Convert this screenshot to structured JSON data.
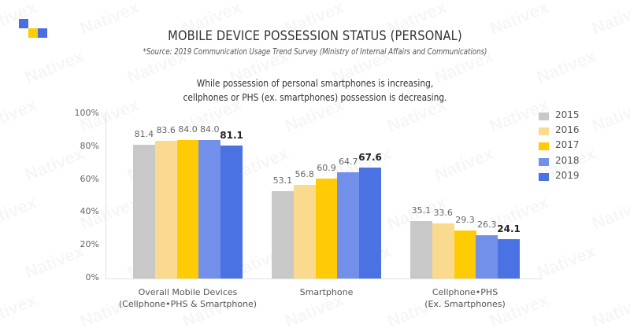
{
  "header": {
    "title": "MOBILE DEVICE POSSESSION STATUS (PERSONAL)",
    "source": "*Source: 2019 Communication Usage Trend Survey (Ministry of Internal Affairs and Communications)",
    "subtitle_line1": "While possession of personal smartphones is increasing,",
    "subtitle_line2": "cellphones or PHS (ex. smartphones) possession is decreasing."
  },
  "logo": {
    "colors": [
      "#4a6ee0",
      "#ffcc00",
      "#4a6ee0"
    ]
  },
  "watermark": "Nativex",
  "y_ticks": [
    "100%",
    "80%",
    "60%",
    "40%",
    "20%",
    "0%"
  ],
  "categories": [
    {
      "line1": "Overall Mobile Devices",
      "line2": "(Cellphone•PHS & Smartphone)"
    },
    {
      "line1": "Smartphone",
      "line2": ""
    },
    {
      "line1": "Cellphone•PHS",
      "line2": "(Ex. Smartphones)"
    }
  ],
  "legend": [
    {
      "label": "2015",
      "color": "#c8c8c8"
    },
    {
      "label": "2016",
      "color": "#f9da8e"
    },
    {
      "label": "2017",
      "color": "#ffcb05"
    },
    {
      "label": "2018",
      "color": "#7290ea"
    },
    {
      "label": "2019",
      "color": "#4b72e2"
    }
  ],
  "chart_data": {
    "type": "bar",
    "title": "MOBILE DEVICE POSSESSION STATUS (PERSONAL)",
    "subtitle": "While possession of personal smartphones is increasing, cellphones or PHS (ex. smartphones) possession is decreasing.",
    "source": "*Source: 2019 Communication Usage Trend Survey (Ministry of Internal Affairs and Communications)",
    "categories": [
      "Overall Mobile Devices (Cellphone•PHS & Smartphone)",
      "Smartphone",
      "Cellphone•PHS (Ex. Smartphones)"
    ],
    "series": [
      {
        "name": "2015",
        "color": "#c8c8c8",
        "values": [
          81.4,
          53.1,
          35.1
        ]
      },
      {
        "name": "2016",
        "color": "#f9da8e",
        "values": [
          83.6,
          56.8,
          33.6
        ]
      },
      {
        "name": "2017",
        "color": "#ffcb05",
        "values": [
          84.0,
          60.9,
          29.3
        ]
      },
      {
        "name": "2018",
        "color": "#7290ea",
        "values": [
          84.0,
          64.7,
          26.3
        ]
      },
      {
        "name": "2019",
        "color": "#4b72e2",
        "values": [
          81.1,
          67.6,
          24.1
        ]
      }
    ],
    "value_labels": [
      [
        "81.4",
        "83.6",
        "84.0",
        "84.0",
        "81.1"
      ],
      [
        "53.1",
        "56.8",
        "60.9",
        "64.7",
        "67.6"
      ],
      [
        "35.1",
        "33.6",
        "29.3",
        "26.3",
        "24.1"
      ]
    ],
    "xlabel": "",
    "ylabel": "",
    "ylim": [
      0,
      100
    ],
    "yticks": [
      "0%",
      "20%",
      "40%",
      "60%",
      "80%",
      "100%"
    ],
    "grid": false,
    "legend_position": "right"
  }
}
